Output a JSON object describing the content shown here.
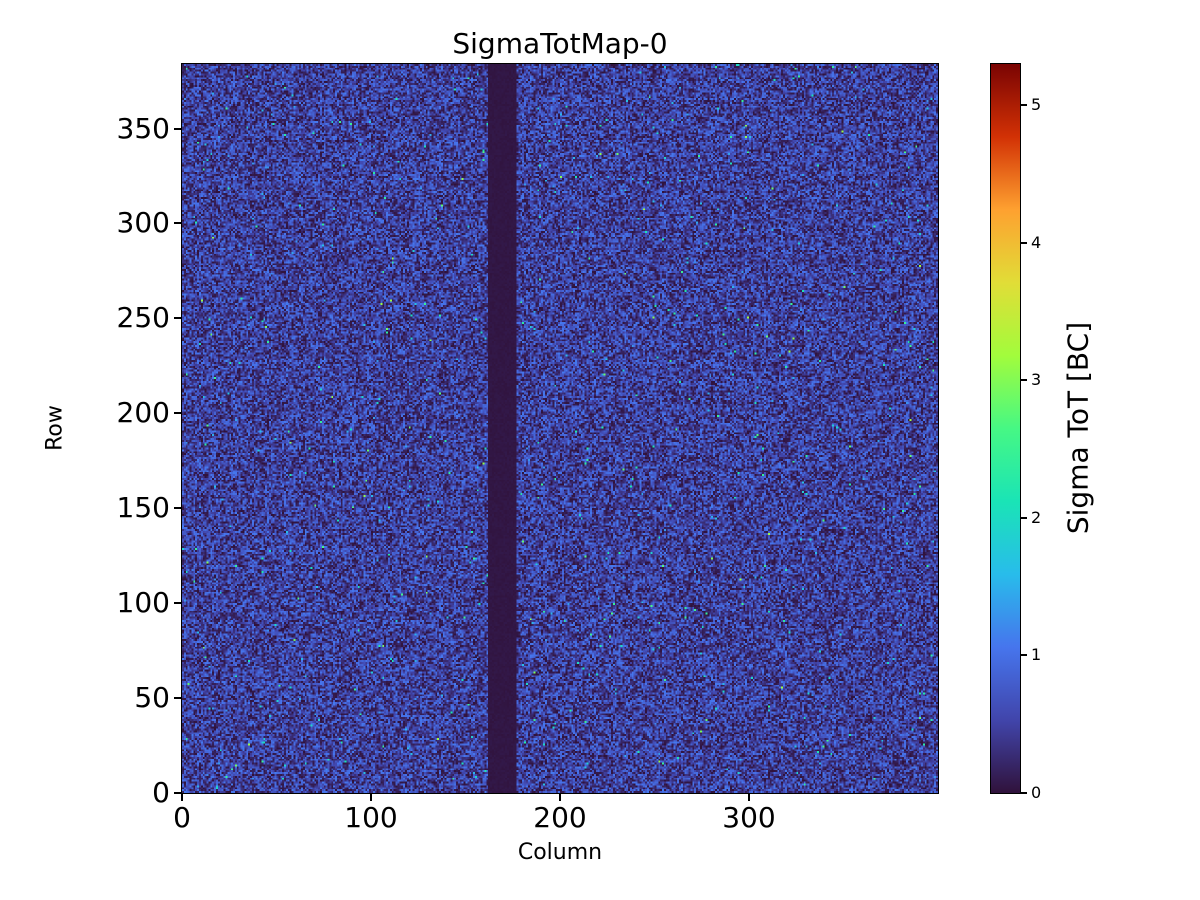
{
  "chart_data": {
    "type": "heatmap",
    "title": "SigmaTotMap-0",
    "xlabel": "Column",
    "ylabel": "Row",
    "colorbar_label": "Sigma ToT [BC]",
    "xlim": [
      0,
      400
    ],
    "ylim": [
      0,
      384
    ],
    "x_ticks": [
      0,
      100,
      200,
      300
    ],
    "y_ticks": [
      0,
      50,
      100,
      150,
      200,
      250,
      300,
      350
    ],
    "colorbar_ticks": [
      0,
      1,
      2,
      3,
      4,
      5
    ],
    "vmin": 0,
    "vmax": 5.3,
    "grid": {
      "nx": 400,
      "ny": 384
    },
    "colormap": "turbo",
    "colormap_stops": [
      [
        0.0,
        "#30123b"
      ],
      [
        0.1,
        "#4145ab"
      ],
      [
        0.2,
        "#4675ed"
      ],
      [
        0.3,
        "#28bceb"
      ],
      [
        0.4,
        "#1ae4b6"
      ],
      [
        0.5,
        "#46f884"
      ],
      [
        0.6,
        "#a2fc3c"
      ],
      [
        0.7,
        "#e1dd37"
      ],
      [
        0.8,
        "#fea130"
      ],
      [
        0.9,
        "#d23105"
      ],
      [
        1.0,
        "#7a0403"
      ]
    ],
    "value_summary": "Per-pixel ToT sigma noise map: most pixels between 0 and ~1.1 BC (dark navy to blue speckle), sparse hotter pixels up to ~3 BC (cyan/green specks), and a dead vertical band at columns 162-176 with sigma ~0 BC.",
    "noise": {
      "seed": 1337,
      "base_exponent": 1.25,
      "base_scale": 1.1,
      "hot_fraction": 0.005,
      "hot_min": 1.2,
      "hot_span": 1.3,
      "spark_fraction": 0.0008,
      "spark_min": 2.4,
      "spark_span": 0.8,
      "dead_cols": [
        162,
        177
      ],
      "dead_value": 0.02
    }
  }
}
